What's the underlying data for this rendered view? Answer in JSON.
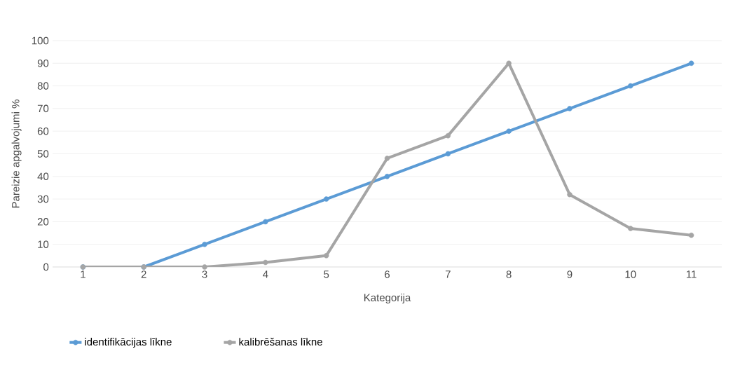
{
  "chart_data": {
    "type": "line",
    "xlabel": "Kategorija",
    "ylabel": "Pareizie apgalvojumi %",
    "categories": [
      "1",
      "2",
      "3",
      "4",
      "5",
      "6",
      "7",
      "8",
      "9",
      "10",
      "11"
    ],
    "series": [
      {
        "name": "identifikācijas līkne",
        "color": "#5b9bd5",
        "values": [
          0,
          0,
          10,
          20,
          30,
          40,
          50,
          60,
          70,
          80,
          90
        ]
      },
      {
        "name": "kalibrēšanas līkne",
        "color": "#a5a5a5",
        "values": [
          0,
          0,
          0,
          2,
          5,
          48,
          58,
          90,
          32,
          17,
          14
        ]
      }
    ],
    "ylim": [
      0,
      100
    ],
    "yticks": [
      0,
      10,
      20,
      30,
      40,
      50,
      60,
      70,
      80,
      90,
      100
    ],
    "grid": "y",
    "legend": "bottom",
    "marker": "circle",
    "line_style": "solid"
  }
}
